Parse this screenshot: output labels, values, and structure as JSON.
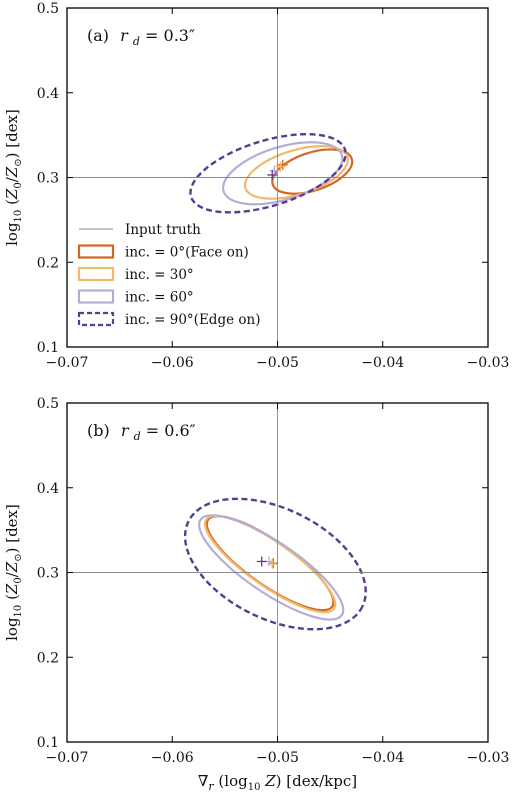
{
  "chart_data": [
    {
      "type": "scatter",
      "panel_label": "(b) r_d = 0.6″",
      "panel_label_parts": {
        "prefix": "(b)",
        "var": "r",
        "sub": "d",
        "value": " = 0.6″"
      },
      "xlabel": "∇r (log10 Z) [dex/kpc]",
      "ylabel": "log10 (Z0/Z⊙) [dex]",
      "xlim": [
        -0.07,
        -0.03
      ],
      "ylim": [
        0.1,
        0.5
      ],
      "xticks": [
        "−0.07",
        "−0.06",
        "−0.05",
        "−0.04",
        "−0.03"
      ],
      "yticks": [
        "0.1",
        "0.2",
        "0.3",
        "0.4",
        "0.5"
      ],
      "truth": {
        "x": -0.05,
        "y": 0.3
      },
      "grid": false,
      "legend": null,
      "series": [
        {
          "name": "inc. = 0°(Face on)",
          "center": [
            -0.0507,
            0.311
          ],
          "rx": 0.0072,
          "ry": 0.026,
          "angle": 35,
          "style": "solid",
          "color": "#d4661f",
          "marker": [
            -0.0504,
            0.311
          ]
        },
        {
          "name": "inc. = 30°",
          "center": [
            -0.0507,
            0.31
          ],
          "rx": 0.0074,
          "ry": 0.026,
          "angle": 35,
          "style": "solid",
          "color": "#f3b86b",
          "marker": [
            -0.0505,
            0.31
          ]
        },
        {
          "name": "inc. = 60°",
          "center": [
            -0.0506,
            0.306
          ],
          "rx": 0.0081,
          "ry": 0.03,
          "angle": 34,
          "style": "solid",
          "color": "#b3aed6",
          "marker": [
            -0.0508,
            0.313
          ]
        },
        {
          "name": "inc. = 90°(Edge on)",
          "center": [
            -0.0502,
            0.31
          ],
          "rx": 0.0092,
          "ry": 0.065,
          "angle": 26,
          "style": "dashed",
          "color": "#5b3b8c",
          "marker": [
            -0.0515,
            0.313
          ]
        }
      ]
    },
    {
      "type": "scatter",
      "panel_label": "(a) r_d = 0.3″",
      "panel_label_parts": {
        "prefix": "(a)",
        "var": "r",
        "sub": "d",
        "value": " = 0.3″"
      },
      "xlabel": "",
      "ylabel": "log10 (Z0/Z⊙) [dex]",
      "xlim": [
        -0.07,
        -0.03
      ],
      "ylim": [
        0.1,
        0.5
      ],
      "xticks": [
        "−0.07",
        "−0.06",
        "−0.05",
        "−0.04",
        "−0.03"
      ],
      "yticks": [
        "0.1",
        "0.2",
        "0.3",
        "0.4",
        "0.5"
      ],
      "truth": {
        "x": -0.05,
        "y": 0.3
      },
      "grid": false,
      "legend": "lower-left",
      "legend_truth_label": "Input truth",
      "series": [
        {
          "name": "inc. = 0°(Face on)",
          "center": [
            -0.0467,
            0.307
          ],
          "rx": 0.0018,
          "ry": 0.049,
          "angle": 72,
          "style": "solid",
          "color": "#d4661f",
          "marker": [
            -0.0495,
            0.315
          ]
        },
        {
          "name": "inc. = 30°",
          "center": [
            -0.0482,
            0.306
          ],
          "rx": 0.0021,
          "ry": 0.063,
          "angle": 73,
          "style": "solid",
          "color": "#f3b86b",
          "marker": [
            -0.0497,
            0.313
          ]
        },
        {
          "name": "inc. = 60°",
          "center": [
            -0.0495,
            0.305
          ],
          "rx": 0.0025,
          "ry": 0.073,
          "angle": 73,
          "style": "solid",
          "color": "#b3aed6",
          "marker": [
            -0.0503,
            0.308
          ]
        },
        {
          "name": "inc. = 90°(Edge on)",
          "center": [
            -0.0509,
            0.305
          ],
          "rx": 0.0031,
          "ry": 0.095,
          "angle": 73,
          "style": "dashed",
          "color": "#5b3b8c",
          "marker": [
            -0.0505,
            0.303
          ]
        }
      ]
    }
  ]
}
